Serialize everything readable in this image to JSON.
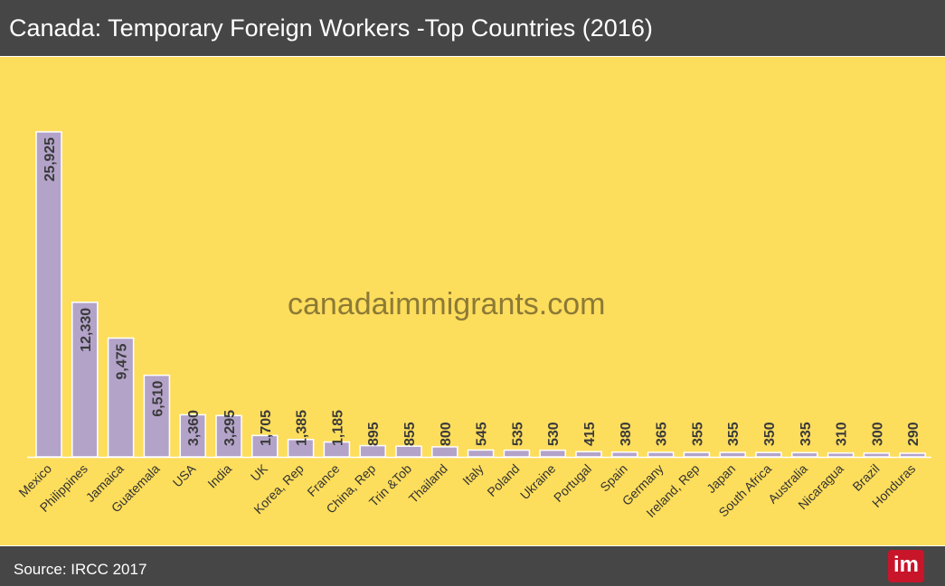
{
  "header": {
    "title": "Canada: Temporary Foreign Workers -Top Countries (2016)"
  },
  "watermark": "canadaimmigrants.com",
  "footer": {
    "source": "Source: IRCC 2017",
    "logo": "im"
  },
  "colors": {
    "header_bg": "#464646",
    "plot_bg": "#fddd5c",
    "bar_fill": "#b3a3c9",
    "label_text": "#3a3a3a"
  },
  "chart_data": {
    "type": "bar",
    "title": "Canada: Temporary Foreign Workers -Top Countries (2016)",
    "xlabel": "",
    "ylabel": "",
    "ylim": [
      0,
      26000
    ],
    "grid": false,
    "legend": "none",
    "categories": [
      "Mexico",
      "Philippines",
      "Jamaica",
      "Guatemala",
      "USA",
      "India",
      "UK",
      "Korea, Rep",
      "France",
      "China, Rep",
      "Trin &Tob",
      "Thailand",
      "Italy",
      "Poland",
      "Ukraine",
      "Portugal",
      "Spain",
      "Germany",
      "Ireland, Rep",
      "Japan",
      "South Africa",
      "Australia",
      "Nicaragua",
      "Brazil",
      "Honduras"
    ],
    "values": [
      25925,
      12330,
      9475,
      6510,
      3360,
      3295,
      1705,
      1385,
      1185,
      895,
      855,
      800,
      545,
      535,
      530,
      415,
      380,
      365,
      355,
      355,
      350,
      335,
      310,
      300,
      290
    ],
    "value_labels": [
      "25,925",
      "12,330",
      "9,475",
      "6,510",
      "3,360",
      "3,295",
      "1,705",
      "1,385",
      "1,185",
      "895",
      "855",
      "800",
      "545",
      "535",
      "530",
      "415",
      "380",
      "365",
      "355",
      "355",
      "350",
      "335",
      "310",
      "300",
      "290"
    ]
  }
}
